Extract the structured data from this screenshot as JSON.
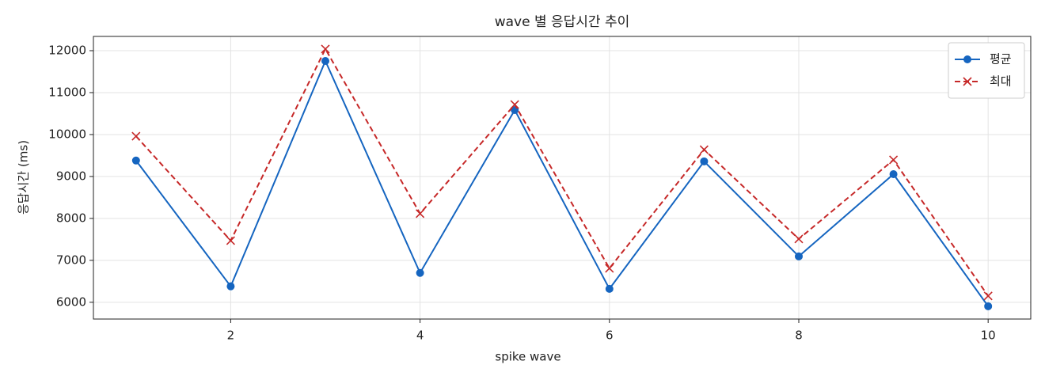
{
  "chart_data": {
    "type": "line",
    "title": "wave 별 응답시간 추이",
    "x_label": "spike wave",
    "y_label": "응답시간 (ms)",
    "x": [
      1,
      2,
      3,
      4,
      5,
      6,
      7,
      8,
      9,
      10
    ],
    "series": [
      {
        "name": "평균",
        "color": "#1565c0",
        "marker": "circle",
        "dashed": false,
        "values": [
          9380,
          6380,
          11755,
          6700,
          10585,
          6320,
          9360,
          7095,
          9055,
          5905
        ]
      },
      {
        "name": "최대",
        "color": "#c62828",
        "marker": "x",
        "dashed": true,
        "values": [
          9960,
          7470,
          12040,
          8115,
          10715,
          6810,
          9640,
          7510,
          9395,
          6150
        ]
      }
    ],
    "xlim": [
      0.55,
      10.45
    ],
    "xticks": [
      2,
      4,
      6,
      8,
      10
    ],
    "ylim": [
      5600,
      12340
    ],
    "yticks": [
      6000,
      7000,
      8000,
      9000,
      10000,
      11000,
      12000
    ],
    "grid": true,
    "legend": "upper right"
  }
}
